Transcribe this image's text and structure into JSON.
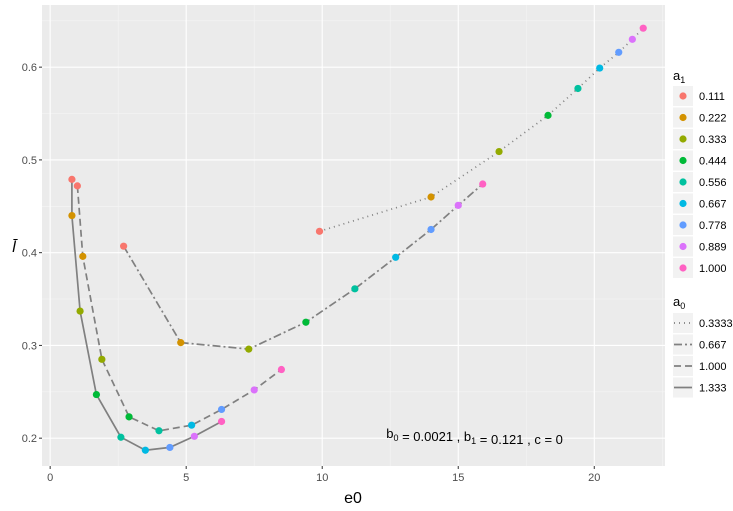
{
  "chart_data": {
    "type": "line",
    "xlabel": "e0",
    "ylabel": "l̄",
    "xlim": [
      -0.3,
      22.6
    ],
    "ylim": [
      0.17,
      0.667
    ],
    "x_ticks": [
      0,
      5,
      10,
      15,
      20
    ],
    "x_tick_labels": [
      "0",
      "5",
      "10",
      "15",
      "20"
    ],
    "y_ticks": [
      0.2,
      0.3,
      0.4,
      0.5,
      0.6
    ],
    "y_tick_labels": [
      "0.2",
      "0.3",
      "0.4",
      "0.5",
      "0.6"
    ],
    "grid": true,
    "legend_position": "right",
    "color_legend": {
      "title_main": "a",
      "title_sub": "1",
      "entries": [
        {
          "label": "0.111",
          "color": "#F8766D"
        },
        {
          "label": "0.222",
          "color": "#D39200"
        },
        {
          "label": "0.333",
          "color": "#93AA00"
        },
        {
          "label": "0.444",
          "color": "#00BA38"
        },
        {
          "label": "0.556",
          "color": "#00C19F"
        },
        {
          "label": "0.667",
          "color": "#00B9E3"
        },
        {
          "label": "0.778",
          "color": "#619CFF"
        },
        {
          "label": "0.889",
          "color": "#DB72FB"
        },
        {
          "label": "1.000",
          "color": "#FF61C3"
        }
      ]
    },
    "linetype_legend": {
      "title_main": "a",
      "title_sub": "0",
      "entries": [
        {
          "label": "0.3333",
          "dash": "1,4"
        },
        {
          "label": "0.667",
          "dash": "8,3,2,3"
        },
        {
          "label": "1.000",
          "dash": "7,4"
        },
        {
          "label": "1.333",
          "dash": ""
        }
      ]
    },
    "annotation": {
      "parts": [
        {
          "text": "b",
          "sub": "0"
        },
        {
          "text": " = 0.0021 , "
        },
        {
          "text": "b",
          "sub": "1"
        },
        {
          "text": " = 0.121 , c = 0"
        }
      ],
      "x": 15.6,
      "y": 0.2
    },
    "series": [
      {
        "a0": "0.3333",
        "dash": "1,4",
        "points": [
          {
            "x": 9.9,
            "y": 0.423,
            "a1": 0
          },
          {
            "x": 14.0,
            "y": 0.46,
            "a1": 1
          },
          {
            "x": 16.5,
            "y": 0.509,
            "a1": 2
          },
          {
            "x": 18.3,
            "y": 0.548,
            "a1": 3
          },
          {
            "x": 19.4,
            "y": 0.577,
            "a1": 4
          },
          {
            "x": 20.2,
            "y": 0.599,
            "a1": 5
          },
          {
            "x": 20.9,
            "y": 0.616,
            "a1": 6
          },
          {
            "x": 21.4,
            "y": 0.63,
            "a1": 7
          },
          {
            "x": 21.8,
            "y": 0.642,
            "a1": 8
          }
        ]
      },
      {
        "a0": "0.667",
        "dash": "8,3,2,3",
        "points": [
          {
            "x": 2.7,
            "y": 0.407,
            "a1": 0
          },
          {
            "x": 4.8,
            "y": 0.303,
            "a1": 1
          },
          {
            "x": 7.3,
            "y": 0.296,
            "a1": 2
          },
          {
            "x": 9.4,
            "y": 0.325,
            "a1": 3
          },
          {
            "x": 11.2,
            "y": 0.361,
            "a1": 4
          },
          {
            "x": 12.7,
            "y": 0.395,
            "a1": 5
          },
          {
            "x": 14.0,
            "y": 0.425,
            "a1": 6
          },
          {
            "x": 15.0,
            "y": 0.451,
            "a1": 7
          },
          {
            "x": 15.9,
            "y": 0.474,
            "a1": 8
          }
        ]
      },
      {
        "a0": "1.000",
        "dash": "7,4",
        "points": [
          {
            "x": 1.0,
            "y": 0.472,
            "a1": 0
          },
          {
            "x": 1.2,
            "y": 0.396,
            "a1": 1
          },
          {
            "x": 1.9,
            "y": 0.285,
            "a1": 2
          },
          {
            "x": 2.9,
            "y": 0.223,
            "a1": 3
          },
          {
            "x": 4.0,
            "y": 0.208,
            "a1": 4
          },
          {
            "x": 5.2,
            "y": 0.214,
            "a1": 5
          },
          {
            "x": 6.3,
            "y": 0.231,
            "a1": 6
          },
          {
            "x": 7.5,
            "y": 0.252,
            "a1": 7
          },
          {
            "x": 8.5,
            "y": 0.274,
            "a1": 8
          }
        ]
      },
      {
        "a0": "1.333",
        "dash": "",
        "points": [
          {
            "x": 0.8,
            "y": 0.479,
            "a1": 0
          },
          {
            "x": 0.8,
            "y": 0.44,
            "a1": 1
          },
          {
            "x": 1.1,
            "y": 0.337,
            "a1": 2
          },
          {
            "x": 1.7,
            "y": 0.247,
            "a1": 3
          },
          {
            "x": 2.6,
            "y": 0.201,
            "a1": 4
          },
          {
            "x": 3.5,
            "y": 0.187,
            "a1": 5
          },
          {
            "x": 4.4,
            "y": 0.19,
            "a1": 6
          },
          {
            "x": 5.3,
            "y": 0.202,
            "a1": 7
          },
          {
            "x": 6.3,
            "y": 0.218,
            "a1": 8
          }
        ]
      }
    ]
  }
}
